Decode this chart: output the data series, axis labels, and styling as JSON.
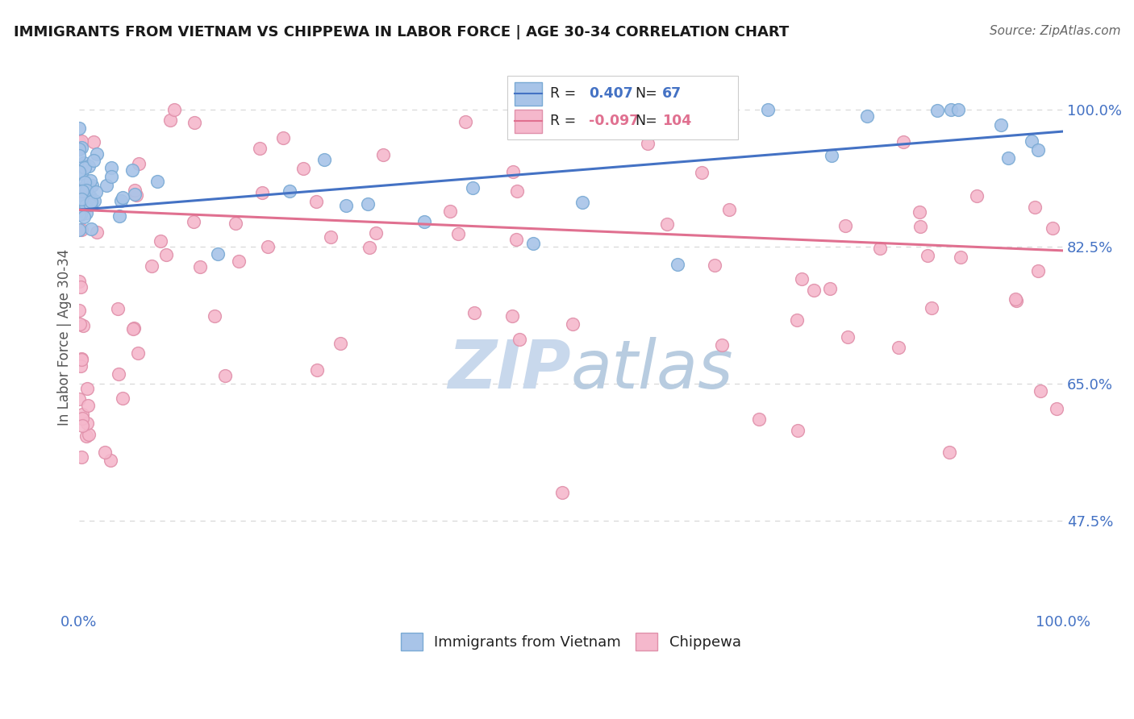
{
  "title": "IMMIGRANTS FROM VIETNAM VS CHIPPEWA IN LABOR FORCE | AGE 30-34 CORRELATION CHART",
  "source": "Source: ZipAtlas.com",
  "ylabel": "In Labor Force | Age 30-34",
  "xlim": [
    0.0,
    1.0
  ],
  "ylim": [
    0.36,
    1.06
  ],
  "yticks": [
    0.475,
    0.65,
    0.825,
    1.0
  ],
  "ytick_labels": [
    "47.5%",
    "65.0%",
    "82.5%",
    "100.0%"
  ],
  "xtick_labels": [
    "0.0%",
    "100.0%"
  ],
  "xticks": [
    0.0,
    1.0
  ],
  "r_vietnam": 0.407,
  "n_vietnam": 67,
  "r_chippewa": -0.097,
  "n_chippewa": 104,
  "line_color_vietnam": "#4472c4",
  "line_color_chippewa": "#e07090",
  "dot_color_vietnam": "#a8c4e8",
  "dot_color_chippewa": "#f5b8cc",
  "dot_edge_vietnam": "#7aaad4",
  "dot_edge_chippewa": "#e090aa",
  "background_color": "#ffffff",
  "grid_color": "#d8d8d8",
  "title_color": "#1a1a1a",
  "source_color": "#666666",
  "axis_label_color": "#555555",
  "tick_label_color": "#4472c4",
  "watermark_color": "#c8d8ec",
  "legend_box_color": "#cccccc",
  "vietnam_line_y0": 0.872,
  "vietnam_line_y1": 0.972,
  "chippewa_line_y0": 0.872,
  "chippewa_line_y1": 0.82
}
